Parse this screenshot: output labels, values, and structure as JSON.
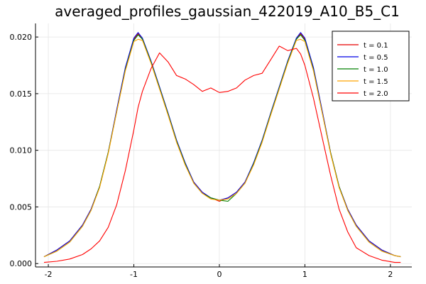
{
  "chart_data": {
    "type": "line",
    "title": "averaged_profiles_gaussian_422019_A10_B5_C1",
    "xlabel": "",
    "ylabel": "",
    "xlim": [
      -2.15,
      2.25
    ],
    "ylim": [
      -0.0003,
      0.0212
    ],
    "grid": true,
    "legend_position": "top-right",
    "xticks": [
      -2,
      -1,
      0,
      1,
      2
    ],
    "xtick_labels": [
      "-2",
      "-1",
      "0",
      "1",
      "2"
    ],
    "yticks": [
      0.0,
      0.005,
      0.01,
      0.015,
      0.02
    ],
    "ytick_labels": [
      "0.000",
      "0.005",
      "0.010",
      "0.015",
      "0.020"
    ],
    "x": [
      -2.05,
      -1.9,
      -1.75,
      -1.6,
      -1.5,
      -1.4,
      -1.3,
      -1.2,
      -1.1,
      -1.0,
      -0.95,
      -0.9,
      -0.8,
      -0.7,
      -0.6,
      -0.5,
      -0.4,
      -0.3,
      -0.2,
      -0.1,
      0.0,
      0.1,
      0.2,
      0.3,
      0.4,
      0.5,
      0.6,
      0.7,
      0.8,
      0.9,
      0.95,
      1.0,
      1.1,
      1.2,
      1.3,
      1.4,
      1.5,
      1.6,
      1.75,
      1.9,
      2.05,
      2.12
    ],
    "series": [
      {
        "name": "t = 0.1",
        "color": "#e60000",
        "values": [
          0.0006,
          0.0012,
          0.002,
          0.0034,
          0.0048,
          0.0068,
          0.0098,
          0.0135,
          0.0172,
          0.0198,
          0.0203,
          0.0198,
          0.0178,
          0.0155,
          0.0132,
          0.0108,
          0.0088,
          0.0072,
          0.0063,
          0.0058,
          0.0055,
          0.0058,
          0.0063,
          0.0072,
          0.0088,
          0.0108,
          0.0132,
          0.0155,
          0.0178,
          0.0198,
          0.0203,
          0.0198,
          0.0172,
          0.0135,
          0.0098,
          0.0068,
          0.0048,
          0.0034,
          0.002,
          0.0012,
          0.0007,
          0.0006
        ]
      },
      {
        "name": "t = 0.5",
        "color": "#0000e6",
        "values": [
          0.0006,
          0.0012,
          0.002,
          0.0034,
          0.0048,
          0.0068,
          0.0098,
          0.0136,
          0.0173,
          0.0199,
          0.0204,
          0.0199,
          0.0179,
          0.0156,
          0.0133,
          0.0109,
          0.0089,
          0.0072,
          0.0063,
          0.0058,
          0.0056,
          0.0058,
          0.0063,
          0.0072,
          0.0089,
          0.0109,
          0.0133,
          0.0156,
          0.0179,
          0.0199,
          0.0204,
          0.0199,
          0.0173,
          0.0136,
          0.0098,
          0.0068,
          0.0048,
          0.0034,
          0.002,
          0.0012,
          0.0007,
          0.0006
        ]
      },
      {
        "name": "t = 1.0",
        "color": "#008000",
        "values": [
          0.0006,
          0.0011,
          0.0019,
          0.0033,
          0.0047,
          0.0068,
          0.0098,
          0.0134,
          0.0171,
          0.0197,
          0.0202,
          0.0198,
          0.0178,
          0.0155,
          0.0132,
          0.0108,
          0.0088,
          0.0071,
          0.0062,
          0.0058,
          0.0056,
          0.0055,
          0.0062,
          0.0071,
          0.0088,
          0.0108,
          0.0132,
          0.0155,
          0.0178,
          0.0198,
          0.0202,
          0.0197,
          0.0171,
          0.0134,
          0.0098,
          0.0068,
          0.0047,
          0.0033,
          0.0019,
          0.0011,
          0.0007,
          0.0006
        ]
      },
      {
        "name": "t = 1.5",
        "color": "#ffa500",
        "values": [
          0.0006,
          0.0011,
          0.0019,
          0.0033,
          0.0047,
          0.0067,
          0.0097,
          0.0134,
          0.017,
          0.0196,
          0.0198,
          0.0197,
          0.0177,
          0.0154,
          0.0131,
          0.0107,
          0.0087,
          0.0071,
          0.0062,
          0.0057,
          0.0056,
          0.0057,
          0.0062,
          0.0071,
          0.0087,
          0.0107,
          0.0131,
          0.0154,
          0.0177,
          0.0197,
          0.0198,
          0.0196,
          0.017,
          0.0134,
          0.0097,
          0.0067,
          0.0047,
          0.0033,
          0.0019,
          0.0011,
          0.0007,
          0.0006
        ]
      },
      {
        "name": "t = 2.0",
        "color": "#ff0000",
        "values": [
          0.0001,
          0.0002,
          0.0004,
          0.0008,
          0.0013,
          0.002,
          0.0032,
          0.0052,
          0.0082,
          0.0118,
          0.0138,
          0.0152,
          0.0172,
          0.0186,
          0.0178,
          0.0166,
          0.0163,
          0.0158,
          0.0152,
          0.0155,
          0.0151,
          0.0152,
          0.0155,
          0.0162,
          0.0166,
          0.0168,
          0.018,
          0.0192,
          0.0188,
          0.019,
          0.0185,
          0.0175,
          0.0146,
          0.0112,
          0.0078,
          0.0048,
          0.0028,
          0.0014,
          0.0007,
          0.0003,
          0.0001,
          0.0001
        ]
      }
    ]
  }
}
